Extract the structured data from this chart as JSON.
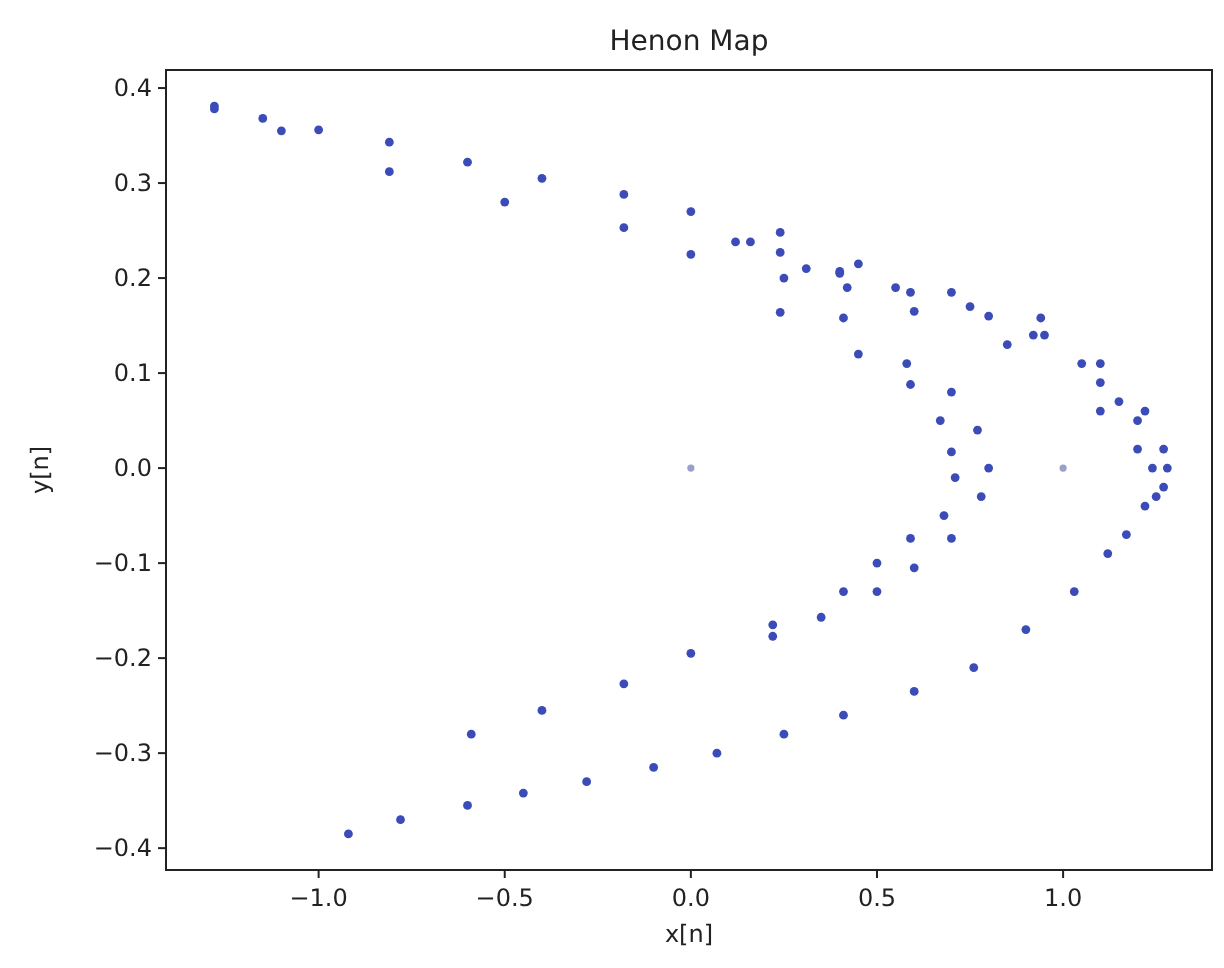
{
  "chart_data": {
    "type": "scatter",
    "title": "Henon Map",
    "xlabel": "x[n]",
    "ylabel": "y[n]",
    "marker": "circle",
    "xlim": [
      -1.41,
      1.4
    ],
    "ylim": [
      -0.423,
      0.419
    ],
    "xticks": [
      {
        "value": -1,
        "label": "−1.0"
      },
      {
        "value": -0.5,
        "label": "−0.5"
      },
      {
        "value": 0,
        "label": "0.0"
      },
      {
        "value": 0.5,
        "label": "0.5"
      },
      {
        "value": 1,
        "label": "1.0"
      }
    ],
    "yticks": [
      {
        "value": -0.4,
        "label": "−0.4"
      },
      {
        "value": -0.3,
        "label": "−0.3"
      },
      {
        "value": -0.2,
        "label": "−0.2"
      },
      {
        "value": -0.1,
        "label": "−0.1"
      },
      {
        "value": 0,
        "label": "0.0"
      },
      0.1,
      0.2,
      0.3,
      0.4
    ],
    "series": [
      {
        "color": "#3b4cb8",
        "x": [
          -1.28,
          -1.15,
          -1.0,
          -0.81,
          -0.6,
          -0.4,
          -0.18,
          0.0,
          0.24,
          0.45,
          0.7,
          0.94,
          1.1,
          1.22,
          1.27,
          1.28,
          1.27,
          1.25,
          1.17,
          1.03,
          0.9,
          0.76,
          0.6,
          0.41,
          0.25,
          0.07,
          -0.1,
          -0.28,
          -0.45,
          -0.6,
          -0.78,
          -0.92,
          1.24,
          1.22,
          1.12,
          1.2,
          1.1,
          0.95,
          -1.28,
          -1.1,
          -0.81,
          -0.5,
          -0.18,
          0.0,
          0.24,
          0.45,
          0.59,
          0.67,
          0.7,
          0.71,
          0.68,
          0.59,
          0.5,
          0.41,
          0.22,
          0.0,
          -0.18,
          -0.4,
          -0.59,
          0.12,
          0.25,
          0.41,
          0.58,
          0.7,
          0.77,
          0.8,
          0.78,
          0.7,
          0.6,
          0.5,
          0.35,
          0.22,
          0.16,
          0.24,
          0.4,
          0.59,
          0.8,
          0.31,
          0.4,
          0.55,
          0.75,
          0.92,
          1.05,
          1.15,
          0.42,
          0.6,
          0.85,
          1.1,
          1.2
        ],
        "values": [
          0.381,
          0.368,
          0.356,
          0.343,
          0.322,
          0.305,
          0.288,
          0.27,
          0.248,
          0.215,
          0.185,
          0.158,
          0.11,
          0.06,
          0.02,
          0.0,
          -0.02,
          -0.03,
          -0.07,
          -0.13,
          -0.17,
          -0.21,
          -0.235,
          -0.26,
          -0.28,
          -0.3,
          -0.315,
          -0.33,
          -0.342,
          -0.355,
          -0.37,
          -0.385,
          0.0,
          -0.04,
          -0.09,
          0.05,
          0.09,
          0.14,
          0.378,
          0.355,
          0.312,
          0.28,
          0.253,
          0.225,
          0.164,
          0.12,
          0.088,
          0.05,
          0.017,
          -0.01,
          -0.05,
          -0.074,
          -0.1,
          -0.13,
          -0.165,
          -0.195,
          -0.227,
          -0.255,
          -0.28,
          0.238,
          0.2,
          0.158,
          0.11,
          0.08,
          0.04,
          0.0,
          -0.03,
          -0.074,
          -0.105,
          -0.13,
          -0.157,
          -0.177,
          0.238,
          0.227,
          0.207,
          0.185,
          0.16,
          0.21,
          0.205,
          0.19,
          0.17,
          0.14,
          0.11,
          0.07,
          0.19,
          0.165,
          0.13,
          0.06,
          0.02
        ]
      },
      {
        "color": "#9aa0c8",
        "x": [
          0,
          1
        ],
        "values": [
          0,
          0
        ]
      }
    ]
  }
}
